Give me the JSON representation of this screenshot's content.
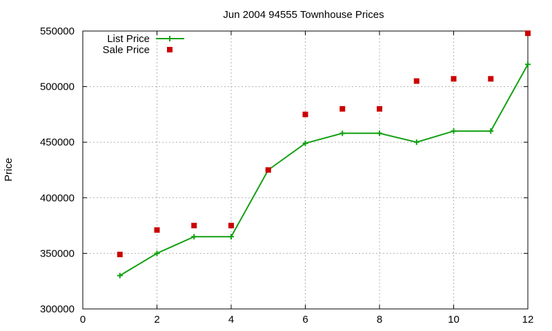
{
  "chart_data": {
    "type": "line",
    "title": "Jun 2004 94555 Townhouse Prices",
    "xlabel": "",
    "ylabel": "Price",
    "xlim": [
      0,
      12
    ],
    "ylim": [
      300000,
      550000
    ],
    "x_ticks": [
      0,
      2,
      4,
      6,
      8,
      10,
      12
    ],
    "y_ticks": [
      300000,
      350000,
      400000,
      450000,
      500000,
      550000
    ],
    "grid": true,
    "legend_position": "top-left",
    "series": [
      {
        "name": "List Price",
        "style": "line-with-plus-markers",
        "color": "#12a012",
        "x": [
          1,
          2,
          3,
          4,
          5,
          6,
          7,
          8,
          9,
          10,
          11,
          12
        ],
        "y": [
          330000,
          350000,
          365000,
          365000,
          425000,
          449000,
          458000,
          458000,
          450000,
          460000,
          460000,
          520000
        ]
      },
      {
        "name": "Sale Price",
        "style": "square-markers",
        "color": "#cc0000",
        "x": [
          1,
          2,
          3,
          4,
          5,
          6,
          7,
          8,
          9,
          10,
          11,
          12
        ],
        "y": [
          349000,
          371000,
          375000,
          375000,
          425000,
          475000,
          480000,
          480000,
          505000,
          507000,
          507000,
          548000
        ]
      }
    ]
  }
}
